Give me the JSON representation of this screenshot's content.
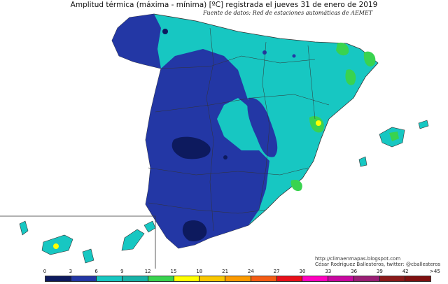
{
  "map": {
    "title": "Amplitud térmica (máxima - mínima) [ºC] registrada el jueves 31 de enero de 2019",
    "source": "Fuente de datos: Red de estaciones automáticas de AEMET",
    "credit_url": "http://climaenmapas.blogspot.com",
    "credit_author": "César Rodríguez Ballesteros, twitter: @cballesteros"
  },
  "legend": {
    "ticks": [
      "0",
      "3",
      "6",
      "9",
      "12",
      "15",
      "18",
      "21",
      "24",
      "27",
      "30",
      "33",
      "36",
      "39",
      "42"
    ],
    "overflow_label": ">45",
    "colors": [
      "#0d1a5e",
      "#2337a5",
      "#17c7c2",
      "#17b3a8",
      "#39d34f",
      "#ffff00",
      "#f9c700",
      "#fb9a00",
      "#f45c14",
      "#e8101a",
      "#ff00bf",
      "#c808a0",
      "#9a1e75",
      "#8b1a1a",
      "#7f1010"
    ]
  },
  "palette": {
    "lowest": "#0d1a5e",
    "low": "#2337a5",
    "mid": "#17c7c2",
    "mid_dark": "#17b3a8",
    "green": "#39d34f",
    "yellow": "#ffff00",
    "sea": "#ffffff",
    "border": "#333333"
  }
}
